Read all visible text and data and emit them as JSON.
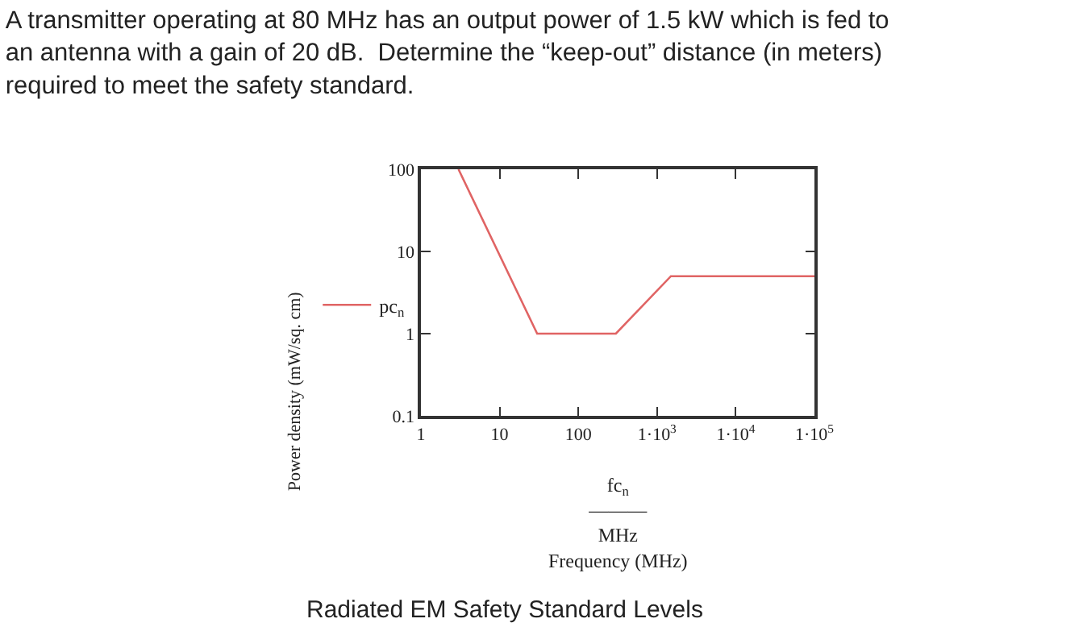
{
  "chart_data": {
    "type": "line",
    "title": "A transmitter operating at 80 MHz has an output power of 1.5 kW which is fed to\nan antenna with a gain of 20 dB.  Determine the “keep-out” distance (in meters)\nrequired to meet the safety standard.",
    "xlabel": "fc$_{n}$\n―――\nMHz\nFrequency (MHz)",
    "ylabel": "Power density (mW/sq. cm)",
    "x": [
      3,
      30,
      300,
      1500,
      100000
    ],
    "series": [
      {
        "name": "pc$_{n}$",
        "color": "#e06464",
        "values": [
          100,
          1,
          1,
          5,
          5
        ]
      }
    ],
    "log": "xy",
    "xlim": [
      1,
      100000
    ],
    "ylim": [
      0.1,
      100
    ],
    "xticks": [
      1,
      10,
      100,
      {
        "value": 1000,
        "label": "1·10$^{3}$"
      },
      {
        "value": 10000,
        "label": "1·10$^{4}$"
      },
      {
        "value": 100000,
        "label": "1·10$^{5}$"
      }
    ],
    "yticks": [
      0.1,
      1,
      10,
      100
    ],
    "legend": "left",
    "marker": "none",
    "line_style": "solid",
    "annotations": [
      "Radiated EM Safety Standard Levels"
    ]
  }
}
